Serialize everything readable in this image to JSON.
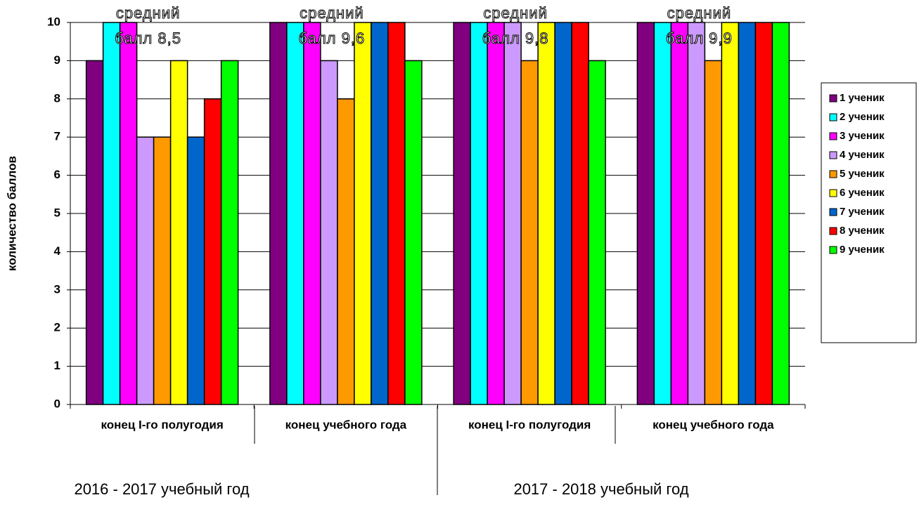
{
  "chart_data": {
    "type": "bar",
    "y_label": "количество баллов",
    "categories": [
      "конец I-го полугодия",
      "конец учебного года",
      "конец I-го полугодия",
      "конец учебного года"
    ],
    "groups": [
      "2016 - 2017 учебный год",
      "2017 - 2018 учебный год"
    ],
    "annotations": [
      [
        "средний",
        "балл 8,5"
      ],
      [
        "средний",
        "балл 9,6"
      ],
      [
        "средний",
        "балл 9,8"
      ],
      [
        "средний",
        "балл 9,9"
      ]
    ],
    "series": [
      {
        "name": "1 ученик",
        "color": "#800080",
        "values": [
          9,
          10,
          10,
          10
        ]
      },
      {
        "name": "2 ученик",
        "color": "#00ffff",
        "values": [
          10,
          10,
          10,
          10
        ]
      },
      {
        "name": "3 ученик",
        "color": "#ff00ff",
        "values": [
          10,
          10,
          10,
          10
        ]
      },
      {
        "name": "4 ученик",
        "color": "#cc99ff",
        "values": [
          7,
          9,
          10,
          10
        ]
      },
      {
        "name": "5 ученик",
        "color": "#ff9900",
        "values": [
          7,
          8,
          9,
          9
        ]
      },
      {
        "name": "6 ученик",
        "color": "#ffff00",
        "values": [
          9,
          10,
          10,
          10
        ]
      },
      {
        "name": "7 ученик",
        "color": "#0066cc",
        "values": [
          7,
          10,
          10,
          10
        ]
      },
      {
        "name": "8 ученик",
        "color": "#ff0000",
        "values": [
          8,
          10,
          10,
          10
        ]
      },
      {
        "name": "9 ученик",
        "color": "#00ff00",
        "values": [
          9,
          9,
          9,
          10
        ]
      }
    ],
    "ylim": [
      0,
      10
    ],
    "yticks": [
      0,
      1,
      2,
      3,
      4,
      5,
      6,
      7,
      8,
      9,
      10
    ],
    "grid": true,
    "legend": "right"
  }
}
